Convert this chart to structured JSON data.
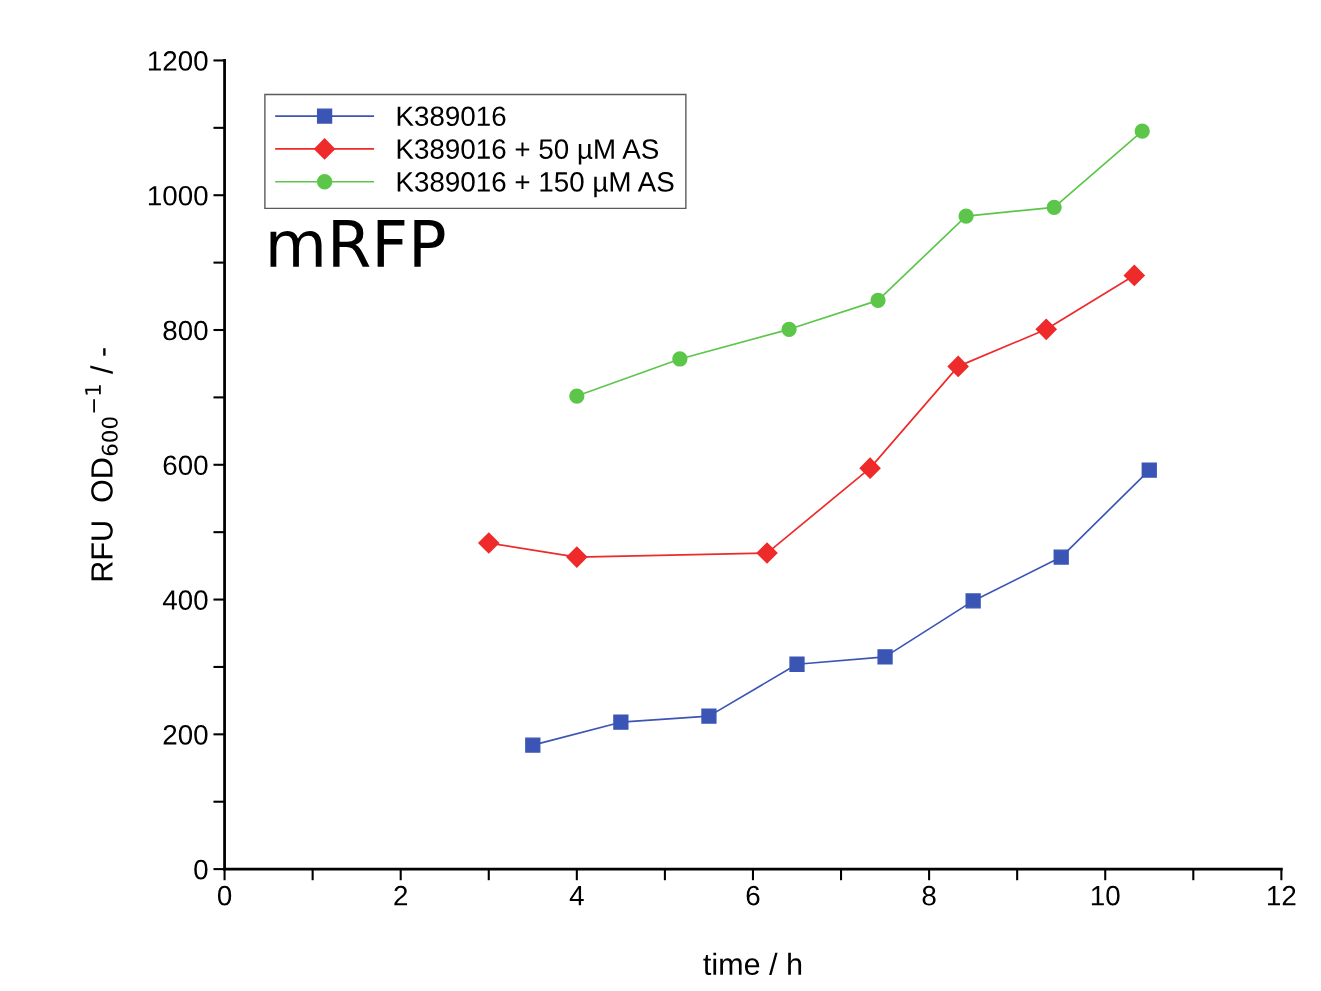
{
  "chart_data": {
    "type": "line",
    "xlabel": "time / h",
    "ylabel": "RFU  OD$_{600}$$^{−1}$ / -",
    "annotations": [
      "mRFP"
    ],
    "xlim": [
      0,
      12
    ],
    "ylim": [
      0,
      1200
    ],
    "xticks": [
      0,
      {
        "value": 1,
        "label": null
      },
      2,
      {
        "value": 3,
        "label": null
      },
      4,
      {
        "value": 5,
        "label": null
      },
      6,
      {
        "value": 7,
        "label": null
      },
      8,
      {
        "value": 9,
        "label": null
      },
      10,
      {
        "value": 11,
        "label": null
      },
      12
    ],
    "yticks": [
      0,
      {
        "value": 100,
        "label": null
      },
      200,
      {
        "value": 300,
        "label": null
      },
      400,
      {
        "value": 500,
        "label": null
      },
      600,
      {
        "value": 700,
        "label": null
      },
      800,
      {
        "value": 900,
        "label": null
      },
      1000,
      {
        "value": 1100,
        "label": null
      },
      1200
    ],
    "grid": false,
    "legend": "top left",
    "line_style": "solid",
    "series": [
      {
        "name": "K389016",
        "color": "#3b55b5",
        "marker": "square",
        "x": [
          3.5,
          4.5,
          5.5,
          6.5,
          7.5,
          8.5,
          9.5,
          10.5
        ],
        "values": [
          184,
          218,
          227,
          304,
          315,
          398,
          463,
          592
        ]
      },
      {
        "name": "K389016 + 50 µM AS",
        "color": "#ee2a2a",
        "marker": "diamond",
        "x": [
          3.0,
          4.0,
          6.16,
          7.33,
          8.33,
          9.33,
          10.33
        ],
        "values": [
          484,
          463,
          469,
          595,
          746,
          801,
          881
        ]
      },
      {
        "name": "K389016 + 150 µM AS",
        "color": "#5cc64a",
        "marker": "circle",
        "x": [
          4.0,
          5.17,
          6.41,
          7.42,
          8.42,
          9.42,
          10.42
        ],
        "values": [
          702,
          757,
          801,
          844,
          969,
          982,
          1095
        ]
      }
    ]
  }
}
